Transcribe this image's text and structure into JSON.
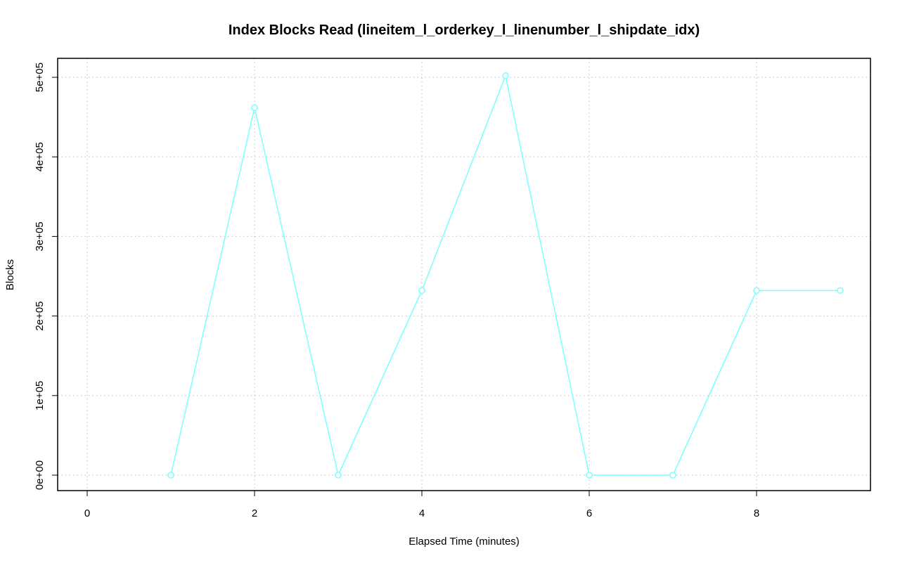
{
  "chart_data": {
    "type": "line",
    "title": "Index Blocks Read (lineitem_l_orderkey_l_linenumber_l_shipdate_idx)",
    "xlabel": "Elapsed Time (minutes)",
    "ylabel": "Blocks",
    "xlim": [
      0,
      9
    ],
    "ylim": [
      0,
      500000
    ],
    "x_ticks": [
      0,
      2,
      4,
      6,
      8
    ],
    "x_tick_labels": [
      "0",
      "2",
      "4",
      "6",
      "8"
    ],
    "y_ticks": [
      0,
      100000,
      200000,
      300000,
      400000,
      500000
    ],
    "y_tick_labels": [
      "0e+00",
      "1e+05",
      "2e+05",
      "3e+05",
      "4e+05",
      "5e+05"
    ],
    "grid": true,
    "series": [
      {
        "color": "#7fffff",
        "marker": "open-circle",
        "x": [
          1,
          2,
          3,
          4,
          5,
          6,
          7,
          8,
          9
        ],
        "values": [
          0,
          462000,
          0,
          232000,
          502000,
          0,
          0,
          232000,
          232000
        ]
      }
    ]
  }
}
